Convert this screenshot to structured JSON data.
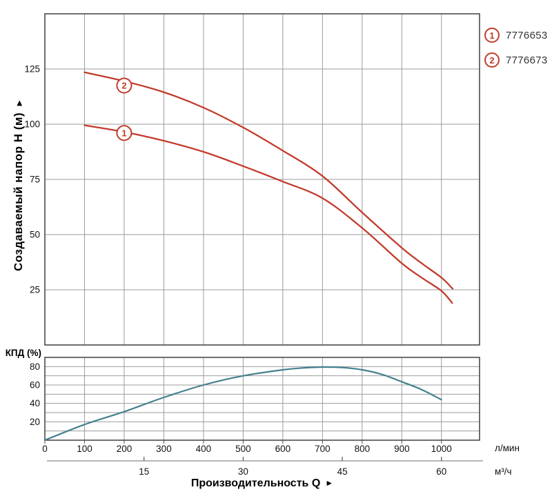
{
  "page": {
    "background": "#ffffff"
  },
  "colors": {
    "curve_red": "#c23b2b",
    "curve_teal": "#44808e",
    "grid": "#9b9b9b",
    "frame": "#4a4a4a",
    "tick_text": "#111111",
    "legend_text": "#333333"
  },
  "legend": {
    "items": [
      {
        "marker": "1",
        "label": "7776653"
      },
      {
        "marker": "2",
        "label": "7776673"
      }
    ]
  },
  "axes": {
    "y_main_title": "Создаваемый напор H (м)",
    "y_main_arrow": "►",
    "y_eff_title": "КПД (%)",
    "x_title": "Производительность Q",
    "x_arrow": "►",
    "unit_primary": "л/мин",
    "unit_secondary": "м³/ч"
  },
  "chart_data": [
    {
      "type": "line",
      "ylabel": "Создаваемый напор H (м)",
      "xlabel": "Производительность Q",
      "x_unit": "л/мин",
      "xlim": [
        0,
        1096
      ],
      "ylim": [
        0,
        150
      ],
      "grid": true,
      "x_gridlines": [
        100,
        200,
        300,
        400,
        500,
        600,
        700,
        800,
        900,
        1000
      ],
      "y_gridlines": [
        25,
        50,
        75,
        100,
        125
      ],
      "y_tick_labels": [
        25,
        50,
        75,
        100,
        125
      ],
      "series": [
        {
          "name": "1",
          "product": "7776653",
          "color": "#c23b2b",
          "x": [
            100,
            200,
            300,
            400,
            500,
            600,
            700,
            800,
            900,
            950,
            1000,
            1027
          ],
          "y": [
            99.5,
            96.5,
            92.5,
            87.5,
            81,
            74,
            66.5,
            53,
            37,
            30.5,
            24.5,
            19
          ]
        },
        {
          "name": "2",
          "product": "7776673",
          "color": "#c23b2b",
          "x": [
            100,
            200,
            300,
            400,
            500,
            600,
            700,
            800,
            900,
            950,
            1000,
            1028
          ],
          "y": [
            123.5,
            119.5,
            114.5,
            107.5,
            98.5,
            88,
            76.5,
            60,
            44,
            37,
            30.5,
            25.5
          ]
        }
      ],
      "curve_labels": [
        {
          "text": "1",
          "q": 200,
          "h": 96
        },
        {
          "text": "2",
          "q": 200,
          "h": 117.5
        }
      ]
    },
    {
      "type": "line",
      "ylabel": "КПД (%)",
      "x_unit": "л/мин",
      "x_unit_secondary": "м³/ч",
      "xlim": [
        0,
        1096
      ],
      "ylim": [
        0,
        90
      ],
      "grid": true,
      "x_gridlines": [
        100,
        200,
        300,
        400,
        500,
        600,
        700,
        800,
        900,
        1000
      ],
      "y_gridlines": [
        10,
        20,
        30,
        40,
        50,
        60,
        70,
        80
      ],
      "y_tick_labels": [
        20,
        40,
        60,
        80
      ],
      "x_tick_labels": [
        0,
        100,
        200,
        300,
        400,
        500,
        600,
        700,
        800,
        900,
        1000
      ],
      "x_secondary_ticks": [
        {
          "label": "15",
          "q": 250
        },
        {
          "label": "30",
          "q": 500
        },
        {
          "label": "45",
          "q": 750
        },
        {
          "label": "60",
          "q": 1000
        }
      ],
      "series": [
        {
          "name": "КПД",
          "color": "#44808e",
          "x": [
            0,
            100,
            200,
            300,
            400,
            500,
            600,
            650,
            700,
            750,
            800,
            850,
            900,
            950,
            1000
          ],
          "y": [
            0,
            17,
            31,
            46.5,
            60,
            70,
            76.5,
            78.5,
            79.5,
            79,
            76.5,
            71.5,
            63.5,
            55,
            44
          ]
        }
      ]
    }
  ]
}
